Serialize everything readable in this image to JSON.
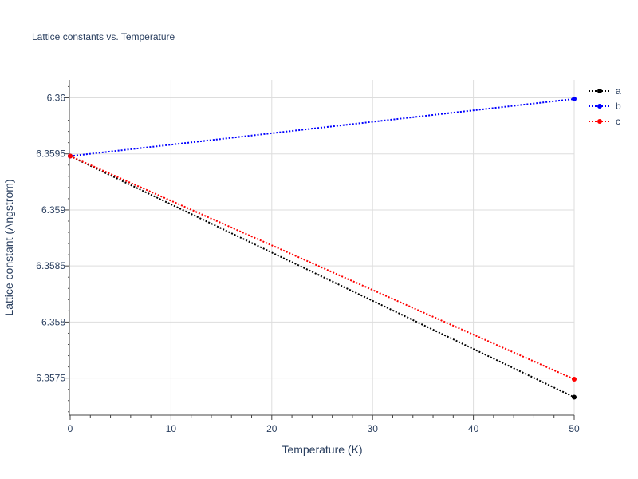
{
  "chart_data": {
    "type": "line",
    "title": "Lattice constants vs. Temperature",
    "xlabel": "Temperature (K)",
    "ylabel": "Lattice constant (Angstrom)",
    "x": [
      0,
      50
    ],
    "xlim": [
      0,
      50
    ],
    "ylim": [
      6.35717,
      6.36016
    ],
    "xticks": [
      0,
      10,
      20,
      30,
      40,
      50
    ],
    "xtick_labels": [
      "0",
      "10",
      "20",
      "30",
      "40",
      "50"
    ],
    "yticks": [
      6.3575,
      6.358,
      6.3585,
      6.359,
      6.3595,
      6.36
    ],
    "ytick_labels": [
      "6.3575",
      "6.358",
      "6.3585",
      "6.359",
      "6.3595",
      "6.36"
    ],
    "grid": true,
    "legend_position": "top-right",
    "series": [
      {
        "name": "a",
        "color": "#000000",
        "values": [
          6.35948,
          6.35733
        ]
      },
      {
        "name": "b",
        "color": "#0000ff",
        "values": [
          6.35948,
          6.35999
        ]
      },
      {
        "name": "c",
        "color": "#ff0000",
        "values": [
          6.35948,
          6.35749
        ]
      }
    ]
  }
}
